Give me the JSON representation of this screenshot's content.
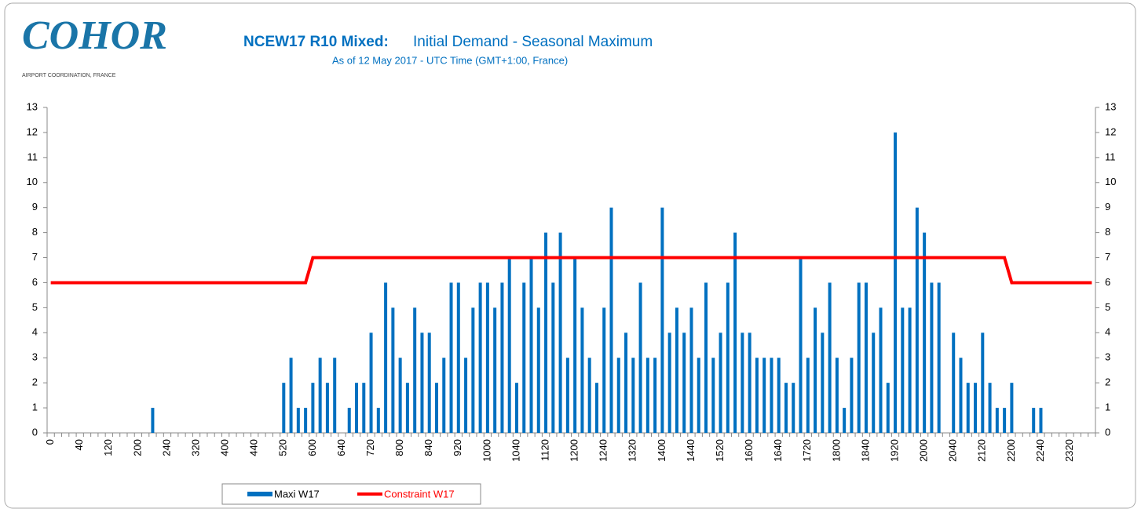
{
  "logo": {
    "name": "COHOR",
    "tagline": "AIRPORT COORDINATION, FRANCE"
  },
  "chart_data": {
    "type": "bar",
    "title_bold": "NCEW17 R10 Mixed:",
    "title": "Initial Demand - Seasonal Maximum",
    "subtitle": "As of 12 May 2017  - UTC Time (GMT+1:00, France)",
    "categories": [
      "0",
      null,
      null,
      null,
      "40",
      null,
      null,
      null,
      "120",
      null,
      null,
      null,
      "200",
      null,
      null,
      null,
      "240",
      null,
      null,
      null,
      "320",
      null,
      null,
      null,
      "400",
      null,
      null,
      null,
      "440",
      null,
      null,
      null,
      "520",
      null,
      null,
      null,
      "600",
      null,
      null,
      null,
      "640",
      null,
      null,
      null,
      "720",
      null,
      null,
      null,
      "800",
      null,
      null,
      null,
      "840",
      null,
      null,
      null,
      "920",
      null,
      null,
      null,
      "1000",
      null,
      null,
      null,
      "1040",
      null,
      null,
      null,
      "1120",
      null,
      null,
      null,
      "1200",
      null,
      null,
      null,
      "1240",
      null,
      null,
      null,
      "1320",
      null,
      null,
      null,
      "1400",
      null,
      null,
      null,
      "1440",
      null,
      null,
      null,
      "1520",
      null,
      null,
      null,
      "1600",
      null,
      null,
      null,
      "1640",
      null,
      null,
      null,
      "1720",
      null,
      null,
      null,
      "1800",
      null,
      null,
      null,
      "1840",
      null,
      null,
      null,
      "1920",
      null,
      null,
      null,
      "2000",
      null,
      null,
      null,
      "2040",
      null,
      null,
      null,
      "2120",
      null,
      null,
      null,
      "2200",
      null,
      null,
      null,
      "2240",
      null,
      null,
      null,
      "2320",
      null,
      null,
      null
    ],
    "series": [
      {
        "name": "Maxi W17",
        "type": "bar",
        "color": "#0070c0",
        "values": [
          0,
          0,
          0,
          0,
          0,
          0,
          0,
          0,
          0,
          0,
          0,
          0,
          0,
          0,
          1,
          0,
          0,
          0,
          0,
          0,
          0,
          0,
          0,
          0,
          0,
          0,
          0,
          0,
          0,
          0,
          0,
          0,
          2,
          3,
          1,
          1,
          2,
          3,
          2,
          3,
          0,
          1,
          2,
          2,
          4,
          1,
          6,
          5,
          3,
          2,
          5,
          4,
          4,
          2,
          3,
          6,
          6,
          3,
          5,
          6,
          6,
          5,
          6,
          7,
          2,
          6,
          7,
          5,
          8,
          6,
          8,
          3,
          7,
          5,
          3,
          2,
          5,
          9,
          3,
          4,
          3,
          6,
          3,
          3,
          9,
          4,
          5,
          4,
          5,
          3,
          6,
          3,
          4,
          6,
          8,
          4,
          4,
          3,
          3,
          3,
          3,
          2,
          2,
          7,
          3,
          5,
          4,
          6,
          3,
          1,
          3,
          6,
          6,
          4,
          5,
          2,
          12,
          5,
          5,
          9,
          8,
          6,
          6,
          0,
          4,
          3,
          2,
          2,
          4,
          2,
          1,
          1,
          2,
          0,
          0,
          1,
          1,
          0,
          0,
          0,
          0,
          0,
          0,
          0
        ]
      },
      {
        "name": "Constraint W17",
        "type": "line",
        "color": "#ff0000",
        "values": [
          6,
          6,
          6,
          6,
          6,
          6,
          6,
          6,
          6,
          6,
          6,
          6,
          6,
          6,
          6,
          6,
          6,
          6,
          6,
          6,
          6,
          6,
          6,
          6,
          6,
          6,
          6,
          6,
          6,
          6,
          6,
          6,
          6,
          6,
          6,
          6,
          7,
          7,
          7,
          7,
          7,
          7,
          7,
          7,
          7,
          7,
          7,
          7,
          7,
          7,
          7,
          7,
          7,
          7,
          7,
          7,
          7,
          7,
          7,
          7,
          7,
          7,
          7,
          7,
          7,
          7,
          7,
          7,
          7,
          7,
          7,
          7,
          7,
          7,
          7,
          7,
          7,
          7,
          7,
          7,
          7,
          7,
          7,
          7,
          7,
          7,
          7,
          7,
          7,
          7,
          7,
          7,
          7,
          7,
          7,
          7,
          7,
          7,
          7,
          7,
          7,
          7,
          7,
          7,
          7,
          7,
          7,
          7,
          7,
          7,
          7,
          7,
          7,
          7,
          7,
          7,
          7,
          7,
          7,
          7,
          7,
          7,
          7,
          7,
          7,
          7,
          7,
          7,
          7,
          7,
          7,
          7,
          6,
          6,
          6,
          6,
          6,
          6,
          6,
          6,
          6,
          6,
          6,
          6
        ]
      }
    ],
    "ylim": [
      0,
      13
    ],
    "yticks": [
      0,
      1,
      2,
      3,
      4,
      5,
      6,
      7,
      8,
      9,
      10,
      11,
      12,
      13
    ],
    "y2lim": [
      0,
      13
    ],
    "y2ticks": [
      0,
      1,
      2,
      3,
      4,
      5,
      6,
      7,
      8,
      9,
      10,
      11,
      12,
      13
    ],
    "grid": false,
    "legend": "bottom"
  }
}
